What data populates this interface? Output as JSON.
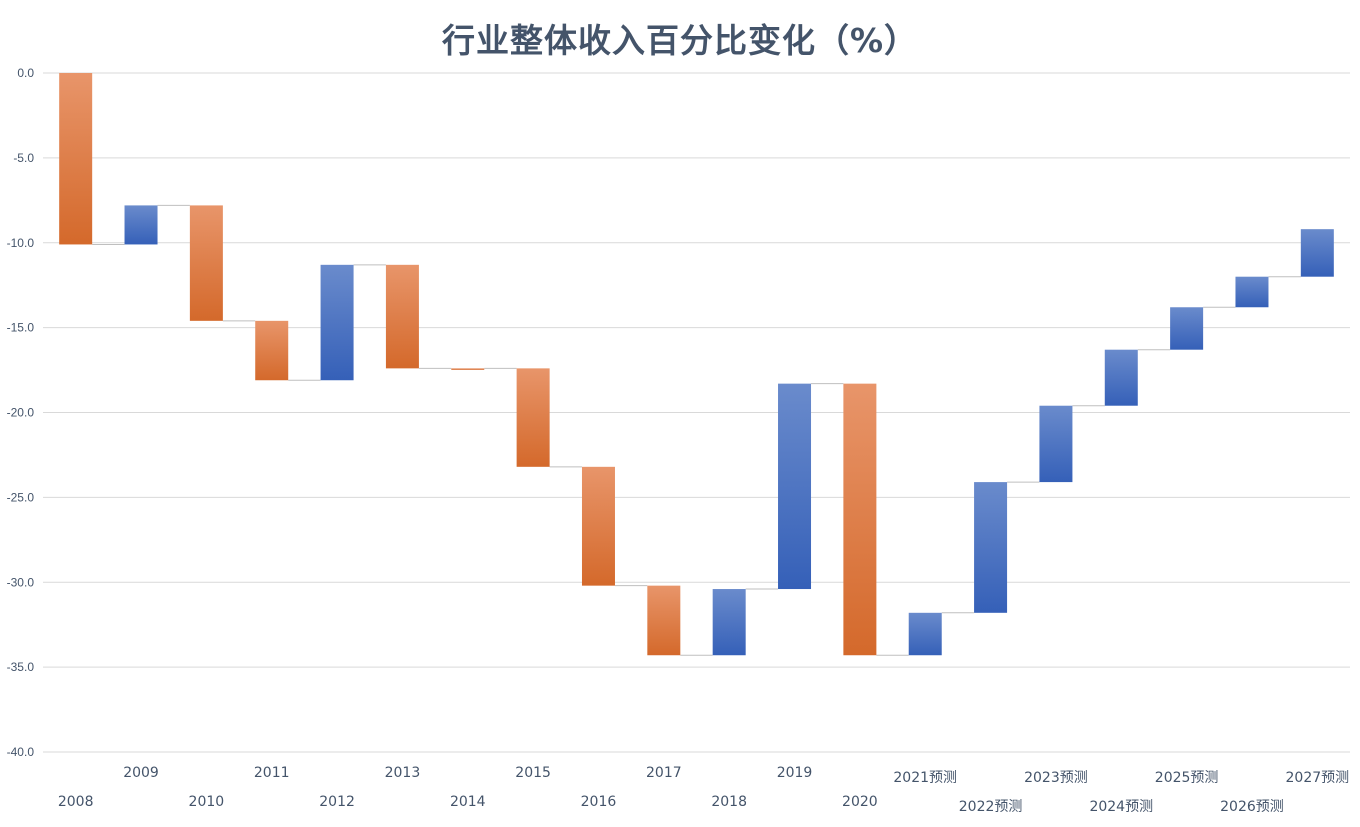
{
  "chart_data": {
    "type": "waterfall",
    "title": "行业整体收入百分比变化（%）",
    "xlabel": "",
    "ylabel": "",
    "ylim": [
      -40,
      0
    ],
    "yticks": [
      "0.0",
      "-5.0",
      "-10.0",
      "-15.0",
      "-20.0",
      "-25.0",
      "-30.0",
      "-35.0",
      "-40.0"
    ],
    "ytick_values": [
      0,
      -5,
      -10,
      -15,
      -20,
      -25,
      -30,
      -35,
      -40
    ],
    "grid": true,
    "legend": "none",
    "categories": [
      "2008",
      "2009",
      "2010",
      "2011",
      "2012",
      "2013",
      "2014",
      "2015",
      "2016",
      "2017",
      "2018",
      "2019",
      "2020",
      "2021预测",
      "2022预测",
      "2023预测",
      "2024预测",
      "2025预测",
      "2026预测",
      "2027预测"
    ],
    "values": [
      -10.1,
      2.3,
      -6.8,
      -3.5,
      6.8,
      -6.1,
      0.0,
      -5.8,
      -7.0,
      -4.1,
      3.9,
      12.1,
      -16.0,
      2.5,
      7.7,
      4.5,
      3.3,
      2.5,
      1.8,
      2.8
    ],
    "running_totals": [
      -10.1,
      -7.8,
      -14.6,
      -18.1,
      -11.3,
      -17.4,
      -17.4,
      -23.2,
      -30.2,
      -34.3,
      -30.4,
      -18.3,
      -34.3,
      -31.8,
      -24.1,
      -19.6,
      -16.3,
      -13.8,
      -12.0,
      -9.2
    ],
    "colors": {
      "decrease_light": "#e8956a",
      "decrease_dark": "#d4692b",
      "increase_light": "#6a8bcc",
      "increase_dark": "#3560b8",
      "grid": "#d9d9d9",
      "connector": "#bfbfbf",
      "text": "#44546a"
    }
  }
}
